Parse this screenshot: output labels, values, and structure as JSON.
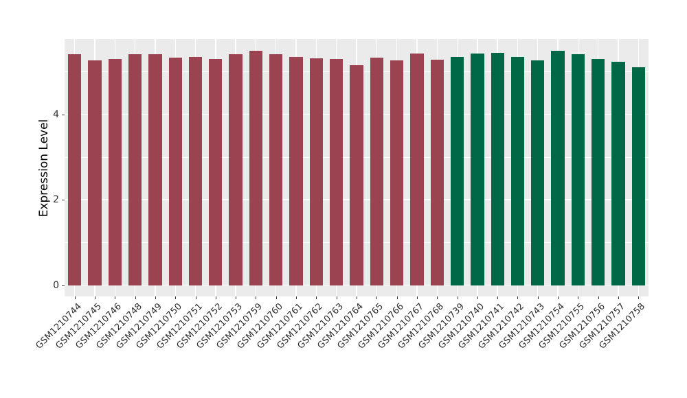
{
  "chart_data": {
    "type": "bar",
    "title": "",
    "xlabel": "",
    "ylabel": "Expression Level",
    "ylim": [
      0,
      5.76
    ],
    "yticks": [
      0,
      2,
      4
    ],
    "yticks_minor": [
      1,
      3,
      5
    ],
    "grid": "on",
    "legend": "none",
    "panel_bg_color": "#EBEBEB",
    "grid_color": "#FFFFFF",
    "group_colors": {
      "group1": "#9B4350",
      "group2": "#006847"
    },
    "bars": [
      {
        "label": "GSM1210744",
        "value": 5.4,
        "group": "group1"
      },
      {
        "label": "GSM1210745",
        "value": 5.27,
        "group": "group1"
      },
      {
        "label": "GSM1210746",
        "value": 5.29,
        "group": "group1"
      },
      {
        "label": "GSM1210748",
        "value": 5.41,
        "group": "group1"
      },
      {
        "label": "GSM1210749",
        "value": 5.41,
        "group": "group1"
      },
      {
        "label": "GSM1210750",
        "value": 5.33,
        "group": "group1"
      },
      {
        "label": "GSM1210751",
        "value": 5.35,
        "group": "group1"
      },
      {
        "label": "GSM1210752",
        "value": 5.3,
        "group": "group1"
      },
      {
        "label": "GSM1210753",
        "value": 5.41,
        "group": "group1"
      },
      {
        "label": "GSM1210759",
        "value": 5.49,
        "group": "group1"
      },
      {
        "label": "GSM1210760",
        "value": 5.41,
        "group": "group1"
      },
      {
        "label": "GSM1210761",
        "value": 5.35,
        "group": "group1"
      },
      {
        "label": "GSM1210762",
        "value": 5.31,
        "group": "group1"
      },
      {
        "label": "GSM1210763",
        "value": 5.29,
        "group": "group1"
      },
      {
        "label": "GSM1210764",
        "value": 5.15,
        "group": "group1"
      },
      {
        "label": "GSM1210765",
        "value": 5.32,
        "group": "group1"
      },
      {
        "label": "GSM1210766",
        "value": 5.26,
        "group": "group1"
      },
      {
        "label": "GSM1210767",
        "value": 5.42,
        "group": "group1"
      },
      {
        "label": "GSM1210768",
        "value": 5.28,
        "group": "group1"
      },
      {
        "label": "GSM1210739",
        "value": 5.34,
        "group": "group2"
      },
      {
        "label": "GSM1210740",
        "value": 5.42,
        "group": "group2"
      },
      {
        "label": "GSM1210741",
        "value": 5.44,
        "group": "group2"
      },
      {
        "label": "GSM1210742",
        "value": 5.34,
        "group": "group2"
      },
      {
        "label": "GSM1210743",
        "value": 5.27,
        "group": "group2"
      },
      {
        "label": "GSM1210754",
        "value": 5.49,
        "group": "group2"
      },
      {
        "label": "GSM1210755",
        "value": 5.41,
        "group": "group2"
      },
      {
        "label": "GSM1210756",
        "value": 5.29,
        "group": "group2"
      },
      {
        "label": "GSM1210757",
        "value": 5.23,
        "group": "group2"
      },
      {
        "label": "GSM1210758",
        "value": 5.1,
        "group": "group2"
      }
    ]
  }
}
